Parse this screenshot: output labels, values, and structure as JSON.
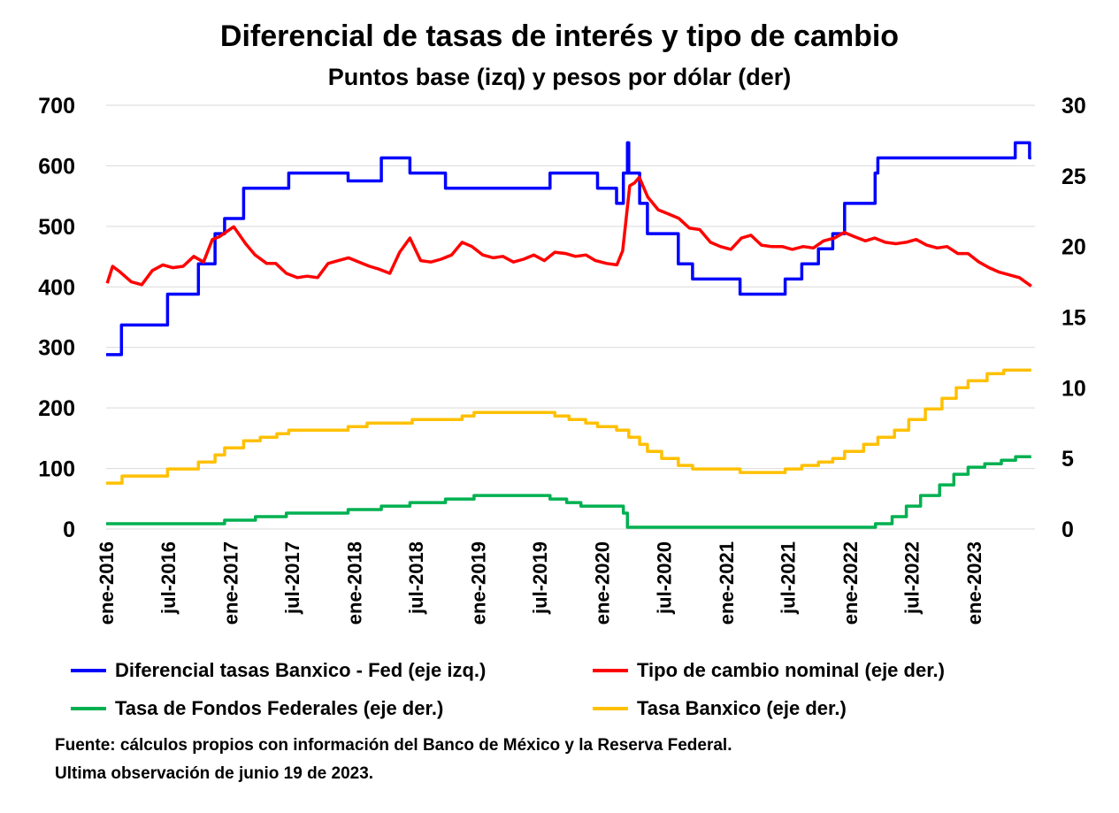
{
  "chart_data": {
    "type": "line",
    "title": "Diferencial de tasas de interés y tipo de cambio",
    "subtitle": "Puntos base (izq) y pesos por dólar (der)",
    "x_ticks": [
      "ene-2016",
      "jul-2016",
      "ene-2017",
      "jul-2017",
      "ene-2018",
      "jul-2018",
      "ene-2019",
      "jul-2019",
      "ene-2020",
      "jul-2020",
      "ene-2021",
      "jul-2021",
      "ene-2022",
      "jul-2022",
      "ene-2023"
    ],
    "x_range": [
      "2016-01",
      "2023-06"
    ],
    "y_left": {
      "range": [
        0,
        700
      ],
      "ticks": [
        "0",
        "100",
        "200",
        "300",
        "400",
        "500",
        "600",
        "700"
      ]
    },
    "y_right": {
      "range": [
        0,
        30
      ],
      "ticks": [
        "0",
        "5",
        "10",
        "15",
        "20",
        "25",
        "30"
      ]
    },
    "grid": "horizontal",
    "series": [
      {
        "name": "Diferencial tasas Banxico - Fed (eje izq.)",
        "axis": "left",
        "color": "#0000ff",
        "step": true,
        "x": [
          "2016-01-01",
          "2016-02-15",
          "2016-06-30",
          "2016-09-29",
          "2016-11-17",
          "2016-12-15",
          "2017-02-09",
          "2017-03-30",
          "2017-06-22",
          "2017-12-14",
          "2017-12-21",
          "2018-02-08",
          "2018-03-22",
          "2018-06-14",
          "2018-06-28",
          "2018-09-27",
          "2019-08-01",
          "2019-09-19",
          "2019-10-31",
          "2019-12-19",
          "2020-02-13",
          "2020-03-04",
          "2020-03-16",
          "2020-03-20",
          "2020-04-21",
          "2020-05-14",
          "2020-06-25",
          "2020-08-13",
          "2020-09-24",
          "2021-02-11",
          "2021-03-25",
          "2021-06-24",
          "2021-08-12",
          "2021-09-30",
          "2021-11-11",
          "2021-12-16",
          "2022-02-10",
          "2022-03-16",
          "2022-03-24",
          "2022-05-04",
          "2022-05-12",
          "2022-06-15",
          "2022-06-23",
          "2022-07-27",
          "2022-08-11",
          "2022-09-21",
          "2022-09-29",
          "2022-11-02",
          "2022-11-10",
          "2022-12-14",
          "2022-12-15",
          "2023-02-01",
          "2023-02-09",
          "2023-03-22",
          "2023-03-30",
          "2023-05-03",
          "2023-06-14",
          "2023-06-19"
        ],
        "y": [
          288,
          337,
          388,
          438,
          488,
          513,
          563,
          563,
          588,
          575,
          575,
          575,
          613,
          588,
          588,
          563,
          588,
          588,
          588,
          563,
          538,
          588,
          638,
          588,
          538,
          488,
          488,
          438,
          413,
          388,
          388,
          413,
          438,
          463,
          488,
          538,
          538,
          588,
          613,
          613,
          613,
          613,
          613,
          613,
          613,
          613,
          613,
          613,
          613,
          613,
          613,
          613,
          613,
          613,
          613,
          638,
          613,
          613
        ]
      },
      {
        "name": "Tipo de cambio nominal (eje der.)",
        "axis": "right",
        "color": "#ff0000",
        "step": false,
        "x": [
          "2016-01-04",
          "2016-01-20",
          "2016-02-11",
          "2016-03-15",
          "2016-04-15",
          "2016-05-16",
          "2016-06-16",
          "2016-07-15",
          "2016-08-15",
          "2016-09-15",
          "2016-10-14",
          "2016-11-09",
          "2016-11-30",
          "2017-01-11",
          "2017-02-15",
          "2017-03-15",
          "2017-04-18",
          "2017-05-15",
          "2017-06-15",
          "2017-07-17",
          "2017-08-15",
          "2017-09-15",
          "2017-10-16",
          "2017-11-15",
          "2017-12-15",
          "2018-01-15",
          "2018-02-15",
          "2018-03-15",
          "2018-04-16",
          "2018-05-15",
          "2018-06-14",
          "2018-07-16",
          "2018-08-15",
          "2018-09-14",
          "2018-10-15",
          "2018-11-15",
          "2018-12-14",
          "2019-01-15",
          "2019-02-15",
          "2019-03-15",
          "2019-04-15",
          "2019-05-15",
          "2019-06-14",
          "2019-07-15",
          "2019-08-15",
          "2019-09-16",
          "2019-10-15",
          "2019-11-15",
          "2019-12-13",
          "2020-01-15",
          "2020-02-14",
          "2020-03-02",
          "2020-03-23",
          "2020-04-06",
          "2020-04-20",
          "2020-05-15",
          "2020-06-15",
          "2020-07-15",
          "2020-08-14",
          "2020-09-15",
          "2020-10-15",
          "2020-11-16",
          "2020-12-15",
          "2021-01-15",
          "2021-02-15",
          "2021-03-15",
          "2021-04-15",
          "2021-05-14",
          "2021-06-15",
          "2021-07-15",
          "2021-08-16",
          "2021-09-15",
          "2021-10-15",
          "2021-11-16",
          "2021-12-15",
          "2022-01-14",
          "2022-02-15",
          "2022-03-15",
          "2022-04-15",
          "2022-05-16",
          "2022-06-15",
          "2022-07-15",
          "2022-08-15",
          "2022-09-15",
          "2022-10-14",
          "2022-11-15",
          "2022-12-15",
          "2023-01-16",
          "2023-02-15",
          "2023-03-15",
          "2023-04-14",
          "2023-05-15",
          "2023-06-19"
        ],
        "y": [
          17.4,
          18.6,
          18.2,
          17.5,
          17.3,
          18.3,
          18.7,
          18.5,
          18.6,
          19.3,
          18.9,
          20.5,
          20.7,
          21.4,
          20.2,
          19.4,
          18.8,
          18.8,
          18.1,
          17.8,
          17.9,
          17.8,
          18.8,
          19.0,
          19.2,
          18.9,
          18.6,
          18.4,
          18.1,
          19.6,
          20.6,
          19.0,
          18.9,
          19.1,
          19.4,
          20.3,
          20.0,
          19.4,
          19.2,
          19.3,
          18.9,
          19.1,
          19.4,
          19.0,
          19.6,
          19.5,
          19.3,
          19.4,
          19.0,
          18.8,
          18.7,
          19.7,
          24.3,
          24.5,
          24.9,
          23.5,
          22.6,
          22.3,
          22.0,
          21.3,
          21.2,
          20.3,
          20.0,
          19.8,
          20.6,
          20.8,
          20.1,
          20.0,
          20.0,
          19.8,
          20.0,
          19.9,
          20.4,
          20.6,
          21.0,
          20.7,
          20.4,
          20.6,
          20.3,
          20.2,
          20.3,
          20.5,
          20.1,
          19.9,
          20.0,
          19.5,
          19.5,
          18.9,
          18.5,
          18.2,
          18.0,
          17.8,
          17.2
        ]
      },
      {
        "name": "Tasa de Fondos Federales (eje der.)",
        "axis": "right",
        "color": "#00b050",
        "step": true,
        "x": [
          "2016-01-01",
          "2016-12-15",
          "2017-03-16",
          "2017-06-15",
          "2017-12-14",
          "2018-03-22",
          "2018-06-14",
          "2018-09-27",
          "2018-12-20",
          "2019-08-01",
          "2019-09-19",
          "2019-10-31",
          "2020-03-04",
          "2020-03-16",
          "2022-03-17",
          "2022-05-05",
          "2022-06-16",
          "2022-07-28",
          "2022-09-22",
          "2022-11-03",
          "2022-12-15",
          "2023-02-02",
          "2023-03-23",
          "2023-05-04",
          "2023-06-19"
        ],
        "y": [
          0.375,
          0.625,
          0.875,
          1.125,
          1.375,
          1.625,
          1.875,
          2.125,
          2.375,
          2.125,
          1.875,
          1.625,
          1.125,
          0.125,
          0.375,
          0.875,
          1.625,
          2.375,
          3.125,
          3.875,
          4.375,
          4.625,
          4.875,
          5.125,
          5.125
        ]
      },
      {
        "name": "Tasa Banxico (eje der.)",
        "axis": "right",
        "color": "#ffc000",
        "step": true,
        "x": [
          "2016-01-01",
          "2016-02-17",
          "2016-06-30",
          "2016-09-29",
          "2016-11-17",
          "2016-12-15",
          "2017-02-09",
          "2017-03-30",
          "2017-05-18",
          "2017-06-22",
          "2017-12-14",
          "2018-02-08",
          "2018-06-21",
          "2018-11-15",
          "2018-12-20",
          "2019-08-15",
          "2019-09-26",
          "2019-11-14",
          "2019-12-19",
          "2020-02-13",
          "2020-03-20",
          "2020-04-21",
          "2020-05-14",
          "2020-06-25",
          "2020-08-13",
          "2020-09-24",
          "2021-02-11",
          "2021-03-25",
          "2021-06-24",
          "2021-08-12",
          "2021-09-30",
          "2021-11-11",
          "2021-12-16",
          "2022-02-10",
          "2022-03-24",
          "2022-05-12",
          "2022-06-23",
          "2022-08-11",
          "2022-09-29",
          "2022-11-10",
          "2022-12-15",
          "2023-02-09",
          "2023-03-30",
          "2023-06-19"
        ],
        "y": [
          3.25,
          3.75,
          4.25,
          4.75,
          5.25,
          5.75,
          6.25,
          6.5,
          6.75,
          7.0,
          7.25,
          7.5,
          7.75,
          8.0,
          8.25,
          8.0,
          7.75,
          7.5,
          7.25,
          7.0,
          6.5,
          6.0,
          5.5,
          5.0,
          4.5,
          4.25,
          4.0,
          4.0,
          4.25,
          4.5,
          4.75,
          5.0,
          5.5,
          6.0,
          6.5,
          7.0,
          7.75,
          8.5,
          9.25,
          10.0,
          10.5,
          11.0,
          11.25,
          11.25
        ]
      }
    ]
  },
  "legend": [
    {
      "label": "Diferencial tasas Banxico - Fed (eje izq.)",
      "color": "#0000ff"
    },
    {
      "label": "Tipo de cambio nominal (eje der.)",
      "color": "#ff0000"
    },
    {
      "label": "Tasa de Fondos Federales (eje der.)",
      "color": "#00b050"
    },
    {
      "label": "Tasa Banxico (eje der.)",
      "color": "#ffc000"
    }
  ],
  "notes": {
    "source": "Fuente: cálculos propios con información del Banco de México y la Reserva Federal.",
    "last_obs": "Ultima observación de junio 19 de 2023."
  }
}
